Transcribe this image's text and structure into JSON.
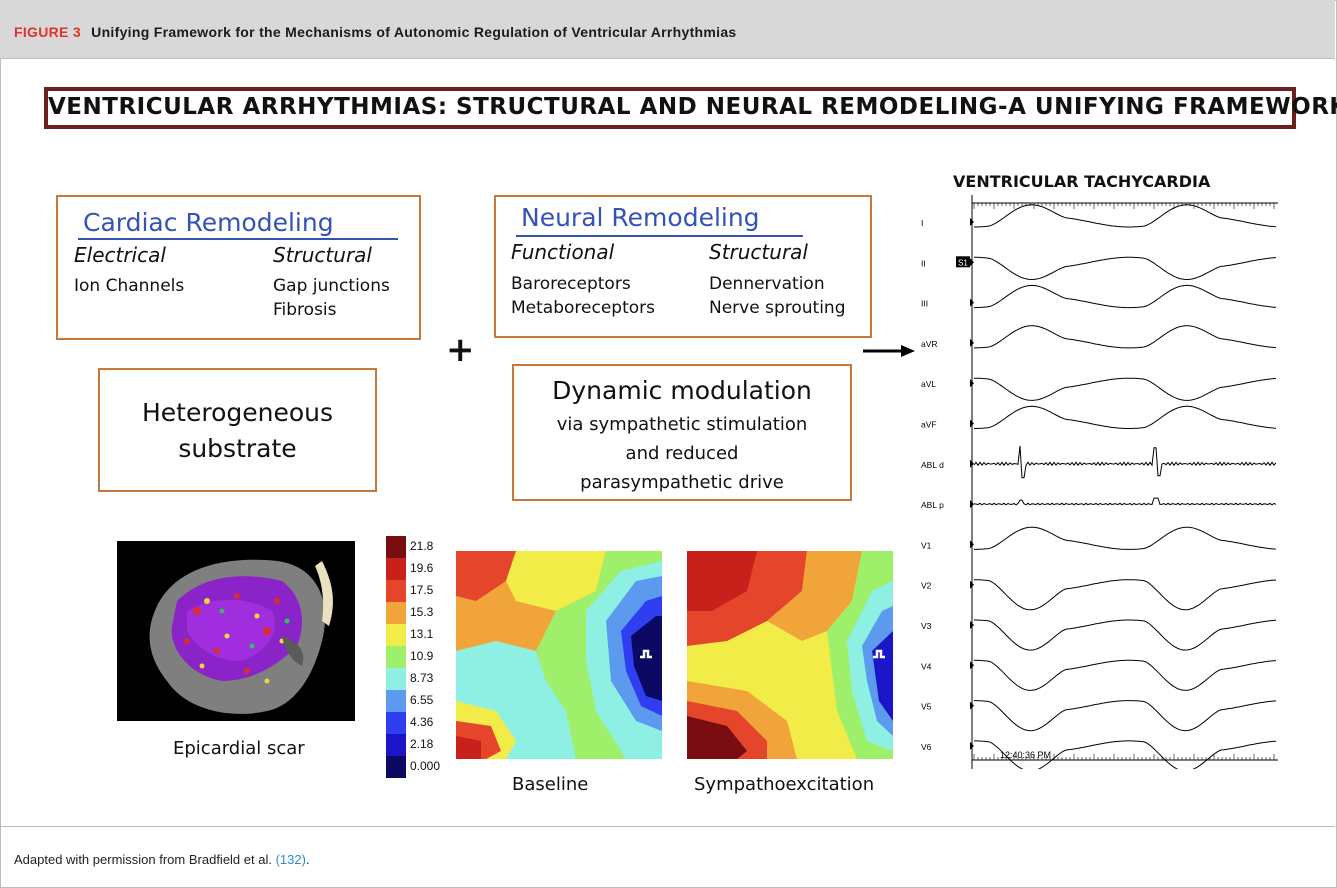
{
  "figure": {
    "label": "FIGURE 3",
    "caption": "Unifying Framework for the Mechanisms of Autonomic Regulation of Ventricular Arrhythmias"
  },
  "main_title": "VENTRICULAR ARRHYTHMIAS: STRUCTURAL AND NEURAL REMODELING-A UNIFYING FRAMEWORK",
  "cardiac": {
    "title": "Cardiac Remodeling",
    "col1_head": "Electrical",
    "col1_items": [
      "Ion Channels"
    ],
    "col2_head": "Structural",
    "col2_items": [
      "Gap junctions",
      "Fibrosis"
    ]
  },
  "neural": {
    "title": "Neural Remodeling",
    "col1_head": "Functional",
    "col1_items": [
      "Baroreceptors",
      "Metaboreceptors"
    ],
    "col2_head": "Structural",
    "col2_items": [
      "Dennervation",
      "Nerve sprouting"
    ]
  },
  "plus": "+",
  "substrate": {
    "line1": "Heterogeneous",
    "line2": "substrate"
  },
  "dynamic": {
    "line1": "Dynamic modulation",
    "line2": "via sympathetic stimulation",
    "line3": "and reduced",
    "line4": "parasympathetic drive"
  },
  "captions": {
    "scar": "Epicardial scar",
    "baseline": "Baseline",
    "sympatho": "Sympathoexcitation"
  },
  "color_scale": {
    "values": [
      "21.8",
      "19.6",
      "17.5",
      "15.3",
      "13.1",
      "10.9",
      "8.73",
      "6.55",
      "4.36",
      "2.18",
      "0.000"
    ],
    "colors": [
      "#7a0d12",
      "#c8201b",
      "#e5452a",
      "#f0a43a",
      "#f2ec48",
      "#9eef6a",
      "#8ef0e3",
      "#5c9af0",
      "#2e3ef0",
      "#1a16c8",
      "#0b0963"
    ]
  },
  "vt": {
    "title": "VENTRICULAR TACHYCARDIA",
    "leads": [
      "I",
      "II",
      "III",
      "aVR",
      "aVL",
      "aVF",
      "ABL d",
      "ABL p",
      "V1",
      "V2",
      "V3",
      "V4",
      "V5",
      "V6"
    ],
    "tag": "S1",
    "time": "12:40:36 PM"
  },
  "footer": {
    "text": "Adapted with permission from Bradfield et al.",
    "ref": "(132)",
    "end": "."
  }
}
